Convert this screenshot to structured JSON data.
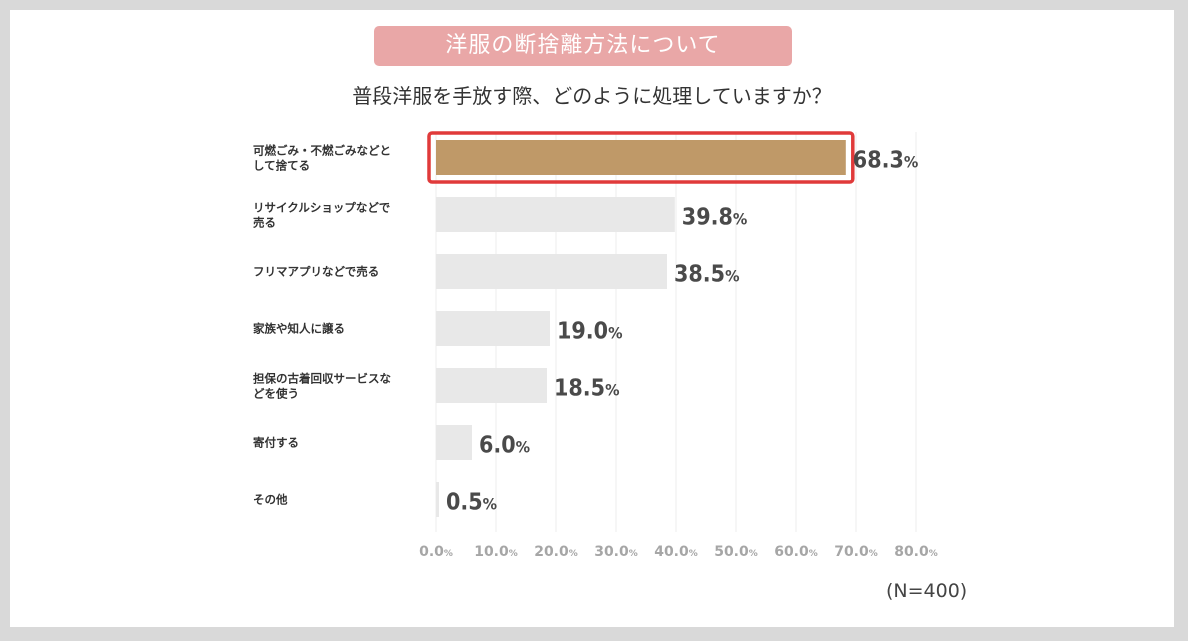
{
  "banner": "洋服の断捨離方法について",
  "question": "普段洋服を手放す際、どのように処理していますか？",
  "sample_size": "(N=400)",
  "chart_data": {
    "type": "bar",
    "orientation": "horizontal",
    "categories": [
      [
        "可燃ごみ・不燃ごみなどと",
        "して捨てる"
      ],
      [
        "リサイクルショップなどで",
        "売る"
      ],
      [
        "フリマアプリなどで売る"
      ],
      [
        "家族や知人に譲る"
      ],
      [
        "担保の古着回収サービスな",
        "どを使う"
      ],
      [
        "寄付する"
      ],
      [
        "その他"
      ]
    ],
    "values": [
      68.3,
      39.8,
      38.5,
      19.0,
      18.5,
      6.0,
      0.5
    ],
    "value_unit": "%",
    "xlim": [
      0,
      80
    ],
    "xticks": [
      0,
      10,
      20,
      30,
      40,
      50,
      60,
      70,
      80
    ],
    "tick_unit": "%",
    "highlight_index": 0,
    "colors": {
      "highlight_bar": "#bf9968",
      "bar": "#e8e8e8",
      "highlight_border": "#e03a3a",
      "grid": "#eeeeee"
    }
  }
}
